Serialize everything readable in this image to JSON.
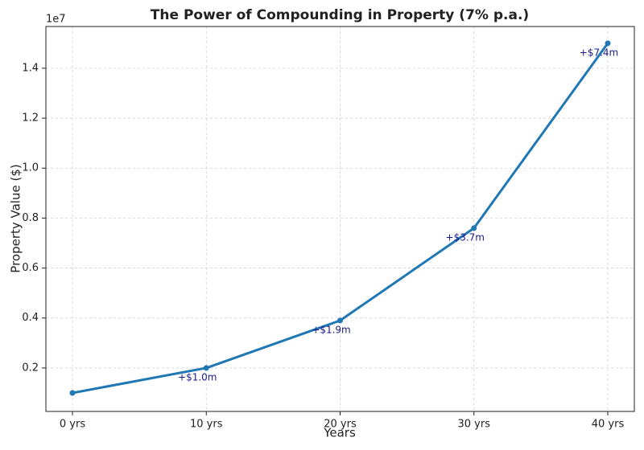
{
  "chart_data": {
    "type": "line",
    "title": "The Power of Compounding in Property (7% p.a.)",
    "xlabel": "Years",
    "ylabel": "Property Value ($)",
    "y_offset_label": "1e7",
    "categories": [
      "0 yrs",
      "10 yrs",
      "20 yrs",
      "30 yrs",
      "40 yrs"
    ],
    "series": [
      {
        "name": "Property Value",
        "color": "#1f77b4",
        "values": [
          1000000,
          2000000,
          3900000,
          7600000,
          15000000
        ]
      }
    ],
    "annotations": [
      null,
      "+$1.0m",
      "+$1.9m",
      "+$3.7m",
      "+$7.4m"
    ],
    "annotation_color": "#1a1a8c",
    "ylim": [
      260000,
      15670000
    ],
    "yticks": [
      {
        "value": 2000000,
        "label": "0.2"
      },
      {
        "value": 4000000,
        "label": "0.4"
      },
      {
        "value": 6000000,
        "label": "0.6"
      },
      {
        "value": 8000000,
        "label": "0.8"
      },
      {
        "value": 10000000,
        "label": "1.0"
      },
      {
        "value": 12000000,
        "label": "1.2"
      },
      {
        "value": 14000000,
        "label": "1.4"
      }
    ],
    "grid": true
  }
}
